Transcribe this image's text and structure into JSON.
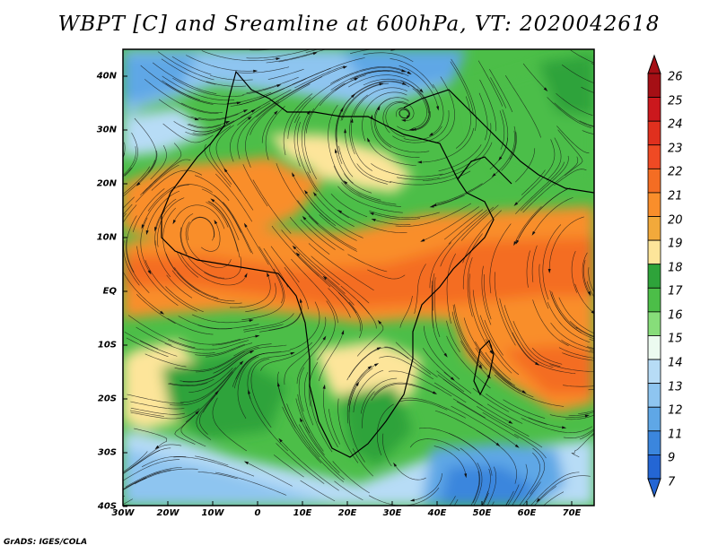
{
  "title": "WBPT [C] and Sreamline at 600hPa, VT: 2020042618",
  "credit": "GrADS: IGES/COLA",
  "map": {
    "variable": "WBPT [C]",
    "level": "600hPa",
    "valid_time": "2020042618",
    "lat_labels": [
      "40N",
      "30N",
      "20N",
      "10N",
      "EQ",
      "10S",
      "20S",
      "30S",
      "40S"
    ],
    "lon_labels": [
      "30W",
      "20W",
      "10W",
      "0",
      "10E",
      "20E",
      "30E",
      "40E",
      "50E",
      "60E",
      "70E"
    ]
  },
  "colorbar": {
    "labels": [
      "26",
      "25",
      "24",
      "23",
      "22",
      "21",
      "20",
      "19",
      "18",
      "17",
      "16",
      "15",
      "14",
      "13",
      "12",
      "11",
      "9",
      "7"
    ],
    "colors": [
      "#a50f15",
      "#cb181d",
      "#e0301e",
      "#ef4a24",
      "#f46d23",
      "#f98e2b",
      "#f2a93b",
      "#fde59a",
      "#2ea33a",
      "#4cbe48",
      "#87dd7a",
      "#ecfbf0",
      "#b7dcf6",
      "#8ec5f0",
      "#5fa7e6",
      "#3b86dd",
      "#2466d4"
    ]
  }
}
